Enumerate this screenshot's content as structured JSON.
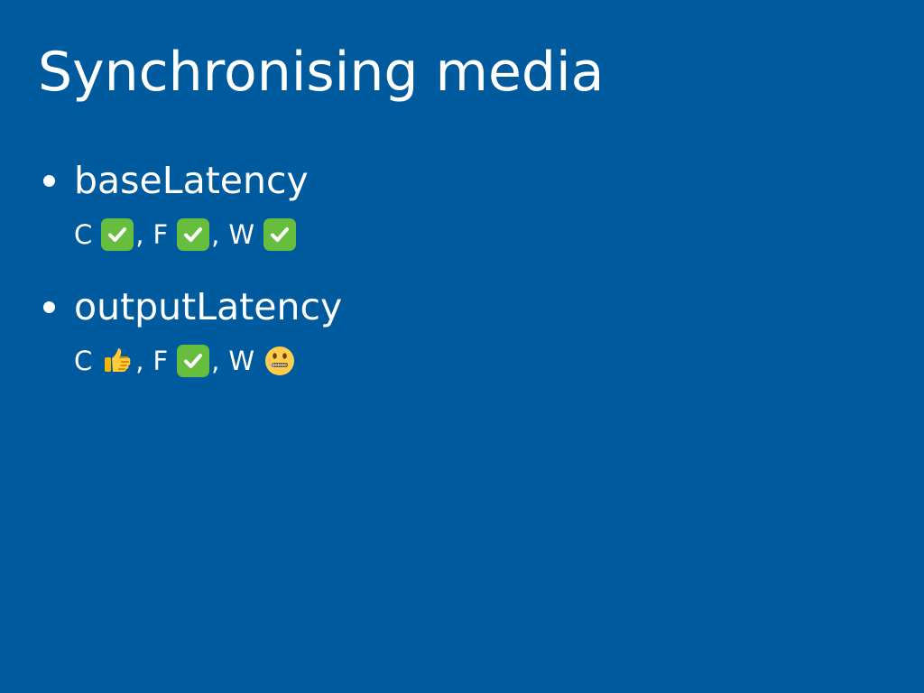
{
  "slide": {
    "title": "Synchronising media",
    "background_color": "#005A9E",
    "text_color": "#FFFFFF",
    "bullet_color": "#FFFFFF"
  },
  "items": [
    {
      "label": "baseLatency",
      "support": [
        {
          "browser": "C",
          "status": "check-icon",
          "separator": ","
        },
        {
          "browser": "F",
          "status": "check-icon",
          "separator": ","
        },
        {
          "browser": "W",
          "status": "check-icon",
          "separator": ""
        }
      ]
    },
    {
      "label": "outputLatency",
      "support": [
        {
          "browser": "C",
          "status": "thumbs-up-icon",
          "separator": ","
        },
        {
          "browser": "F",
          "status": "check-icon",
          "separator": ","
        },
        {
          "browser": "W",
          "status": "zipper-mouth-face-icon",
          "separator": ""
        }
      ]
    }
  ]
}
